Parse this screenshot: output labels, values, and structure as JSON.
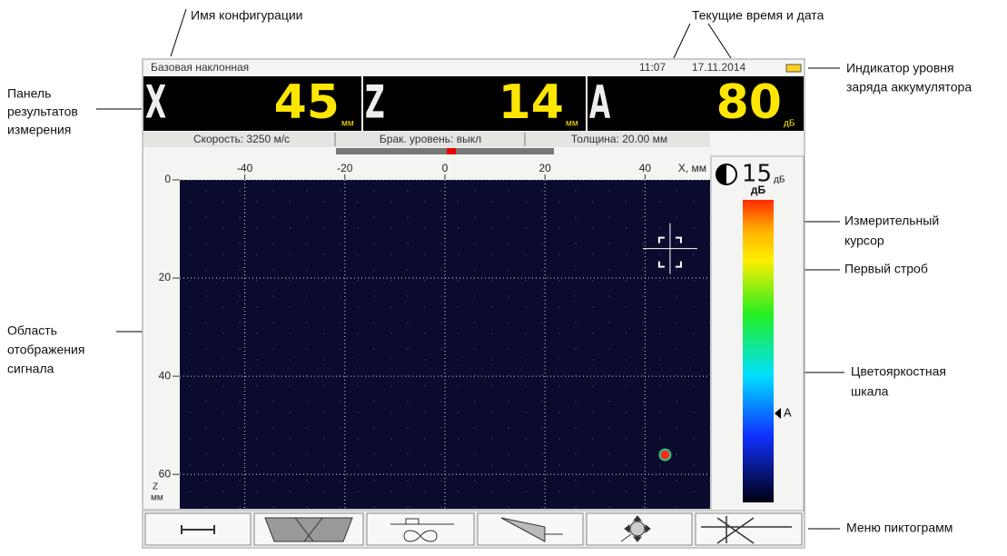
{
  "annotations": {
    "config_name": [
      "Имя конфигурации"
    ],
    "time_date": [
      "Текущие время и дата"
    ],
    "battery": [
      "Индикатор уровня",
      "заряда аккумулятора"
    ],
    "results_panel": [
      "Панель",
      "результатов",
      "измерения"
    ],
    "cursor": [
      "Измерительный",
      "курсор"
    ],
    "gate": [
      "Первый строб"
    ],
    "signal_area": [
      "Область",
      "отображения",
      "сигнала"
    ],
    "color_scale": [
      "Цветояркостная",
      "шкала"
    ],
    "menu": [
      "Меню пиктограмм"
    ]
  },
  "screen": {
    "config": "Базовая наклонная",
    "time": "11:07",
    "date": "17.11.2014",
    "measurements": [
      {
        "letter": "X",
        "value": 45,
        "unit": "мм"
      },
      {
        "letter": "Z",
        "value": 14,
        "unit": "мм"
      },
      {
        "letter": "A",
        "value": 80,
        "unit": "дБ"
      }
    ],
    "status": [
      "Скорость: 3250 м/с",
      "Брак. уровень: выкл",
      "Толщина: 20.00 мм"
    ],
    "gain": {
      "value": 15,
      "unit": "дБ"
    },
    "scan": {
      "x_label": "X, мм",
      "z_label": [
        "Z",
        "мм"
      ],
      "xlim": [
        -53,
        53
      ],
      "xticks": [
        -40,
        -20,
        0,
        20,
        40
      ],
      "ylim": [
        0,
        67
      ],
      "yticks": [
        0,
        20,
        40,
        60
      ],
      "signal": {
        "x": 44,
        "z": 56
      }
    },
    "color_scale": {
      "unit": "дБ",
      "marker": "A"
    }
  }
}
